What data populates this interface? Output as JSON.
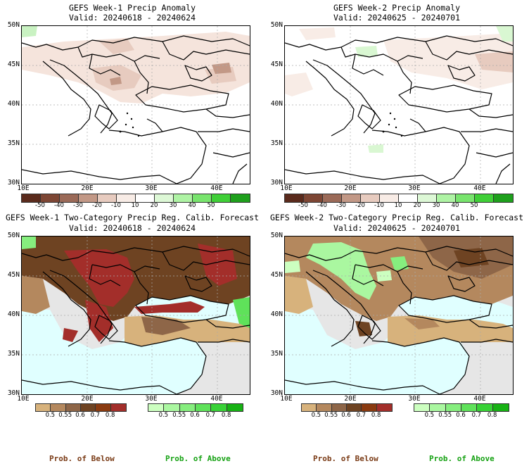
{
  "panels": {
    "w1_anom": {
      "title": "GEFS Week-1 Precip Anomaly",
      "valid": "Valid: 20240618 - 20240624"
    },
    "w2_anom": {
      "title": "GEFS Week-2 Precip Anomaly",
      "valid": "Valid: 20240625 - 20240701"
    },
    "w1_prob": {
      "title": "GEFS Week-1 Two-Category Precip Reg. Calib. Forecast",
      "valid": "Valid: 20240618 - 20240624"
    },
    "w2_prob": {
      "title": "GEFS Week-2 Two-Category Precip Reg. Calib. Forecast",
      "valid": "Valid: 20240625 - 20240701"
    }
  },
  "axes": {
    "lat_labels": [
      "50N",
      "45N",
      "40N",
      "35N",
      "30N"
    ],
    "lon_labels": [
      "10E",
      "20E",
      "30E",
      "40E"
    ]
  },
  "anomaly_colorbar": {
    "labels": [
      "-50",
      "-40",
      "-30",
      "-20",
      "-10",
      "10",
      "20",
      "30",
      "40",
      "50"
    ],
    "colors": [
      "#5a2a1c",
      "#7d4634",
      "#9b6a58",
      "#c29886",
      "#e7cbbf",
      "#f8ece6",
      "#ffffff",
      "#ddf8d6",
      "#aef3a4",
      "#78e46d",
      "#3fcf37",
      "#1ea01c"
    ]
  },
  "below_colorbar": {
    "labels": [
      "0.5",
      "0.55",
      "0.6",
      "0.7",
      "0.8"
    ],
    "colors": [
      "#d7b27c",
      "#b4885e",
      "#8e6648",
      "#6e4322",
      "#8a3a10",
      "#a32e2a"
    ]
  },
  "above_colorbar": {
    "labels": [
      "0.5",
      "0.55",
      "0.6",
      "0.7",
      "0.8"
    ],
    "colors": [
      "#ccffc0",
      "#aaf7a0",
      "#86ee7e",
      "#5fe25a",
      "#38d236",
      "#17b214"
    ]
  },
  "footer": {
    "below_left": "Prob. of Below",
    "above_left": "Prob. of Above",
    "below_right": "Prob. of Below",
    "above_right": "Prob. of Above"
  }
}
